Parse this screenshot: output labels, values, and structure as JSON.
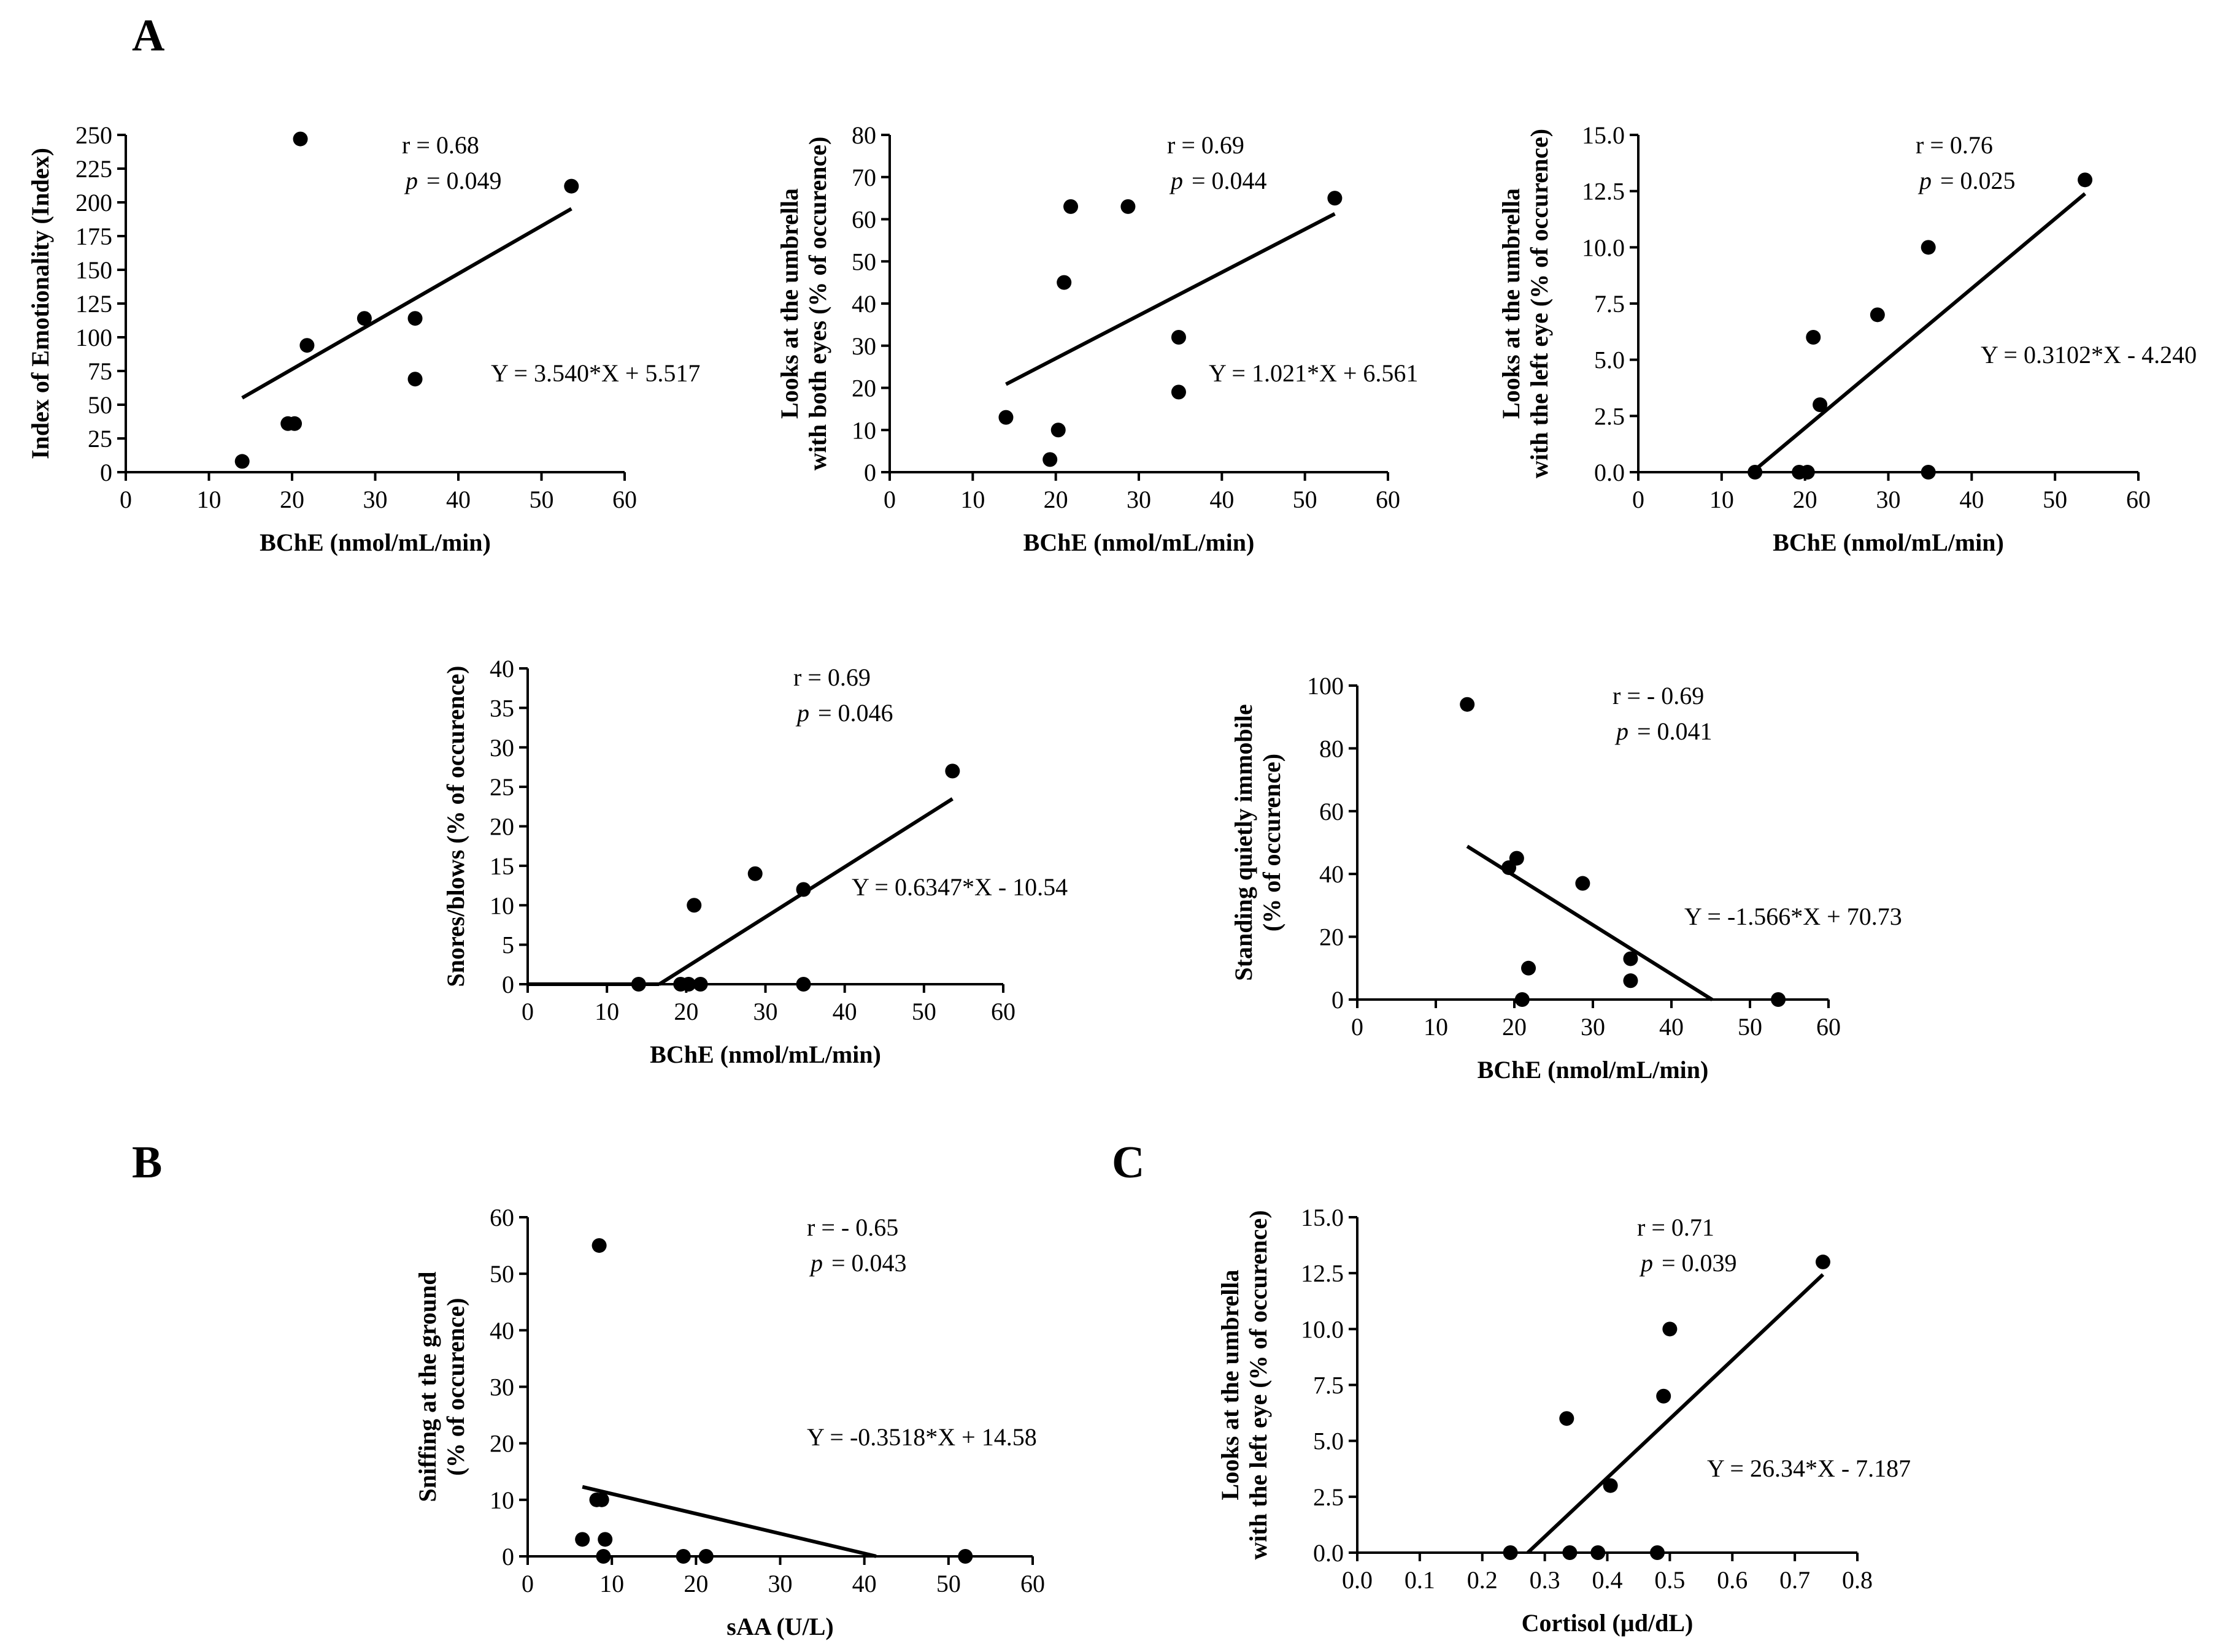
{
  "panel_letters": [
    "A",
    "B",
    "C"
  ],
  "chart_data": [
    {
      "type": "scatter",
      "panel": "A",
      "xlabel": "BChE (nmol/mL/min)",
      "ylabel": [
        "Index of Emotionality (Index)"
      ],
      "xlim": [
        0,
        60
      ],
      "ylim": [
        0,
        250
      ],
      "xticks": [
        "0",
        "10",
        "20",
        "30",
        "40",
        "50",
        "60"
      ],
      "yticks": [
        "0",
        "25",
        "50",
        "75",
        "100",
        "125",
        "150",
        "175",
        "200",
        "225",
        "250"
      ],
      "points": [
        [
          14,
          8
        ],
        [
          19.5,
          36
        ],
        [
          20.3,
          36
        ],
        [
          21,
          247
        ],
        [
          21.8,
          94
        ],
        [
          28.7,
          114
        ],
        [
          34.8,
          114
        ],
        [
          34.8,
          69
        ],
        [
          53.6,
          212
        ]
      ],
      "fit": {
        "slope": 3.54,
        "intercept": 5.517,
        "x_range": [
          14,
          53.6
        ]
      },
      "r_text": "r = 0.68",
      "p_label": "p",
      "p_text": "= 0.049",
      "equation": "Y = 3.540*X + 5.517"
    },
    {
      "type": "scatter",
      "panel": "A",
      "xlabel": "BChE (nmol/mL/min)",
      "ylabel": [
        "Looks at the umbrella",
        "with both eyes (% of occurence)"
      ],
      "xlim": [
        0,
        60
      ],
      "ylim": [
        0,
        80
      ],
      "xticks": [
        "0",
        "10",
        "20",
        "30",
        "40",
        "50",
        "60"
      ],
      "yticks": [
        "0",
        "10",
        "20",
        "30",
        "40",
        "50",
        "60",
        "70",
        "80"
      ],
      "points": [
        [
          14,
          13
        ],
        [
          19.3,
          3
        ],
        [
          20.3,
          10
        ],
        [
          21,
          45
        ],
        [
          21.8,
          63
        ],
        [
          28.7,
          63
        ],
        [
          34.8,
          32
        ],
        [
          34.8,
          19
        ],
        [
          53.6,
          65
        ]
      ],
      "fit": {
        "slope": 1.021,
        "intercept": 6.561,
        "x_range": [
          14,
          53.6
        ]
      },
      "r_text": "r = 0.69",
      "p_label": "p",
      "p_text": "= 0.044",
      "equation": "Y = 1.021*X + 6.561"
    },
    {
      "type": "scatter",
      "panel": "A",
      "xlabel": "BChE (nmol/mL/min)",
      "ylabel": [
        "Looks at the umbrella",
        "with the left eye (% of occurence)"
      ],
      "xlim": [
        0,
        60
      ],
      "ylim": [
        0,
        15
      ],
      "xticks": [
        "0",
        "10",
        "20",
        "30",
        "40",
        "50",
        "60"
      ],
      "yticks": [
        "0.0",
        "2.5",
        "5.0",
        "7.5",
        "10.0",
        "12.5",
        "15.0"
      ],
      "points": [
        [
          14,
          0
        ],
        [
          19.3,
          0
        ],
        [
          20.3,
          0
        ],
        [
          21,
          6
        ],
        [
          21.8,
          3
        ],
        [
          28.7,
          7
        ],
        [
          34.8,
          10
        ],
        [
          34.8,
          0
        ],
        [
          53.6,
          13
        ]
      ],
      "fit": {
        "slope": 0.3102,
        "intercept": -4.24,
        "x_range": [
          13.67,
          53.6
        ]
      },
      "r_text": "r = 0.76",
      "p_label": "p",
      "p_text": "= 0.025",
      "equation": "Y = 0.3102*X - 4.240"
    },
    {
      "type": "scatter",
      "panel": "A",
      "xlabel": "BChE (nmol/mL/min)",
      "ylabel": [
        "Snores/blows (% of occurence)"
      ],
      "xlim": [
        0,
        60
      ],
      "ylim": [
        0,
        40
      ],
      "xticks": [
        "0",
        "10",
        "20",
        "30",
        "40",
        "50",
        "60"
      ],
      "yticks": [
        "0",
        "5",
        "10",
        "15",
        "20",
        "25",
        "30",
        "35",
        "40"
      ],
      "points": [
        [
          14,
          0
        ],
        [
          19.3,
          0
        ],
        [
          20.3,
          0
        ],
        [
          21,
          10
        ],
        [
          21.8,
          0
        ],
        [
          28.7,
          14
        ],
        [
          34.8,
          12
        ],
        [
          34.8,
          0
        ],
        [
          53.6,
          27
        ]
      ],
      "fit": {
        "slope": 0.6347,
        "intercept": -10.54,
        "x_range": [
          16.6,
          53.6
        ]
      },
      "baseline": [
        0,
        16.6
      ],
      "r_text": "r = 0.69",
      "p_label": "p",
      "p_text": "= 0.046",
      "equation": "Y = 0.6347*X - 10.54"
    },
    {
      "type": "scatter",
      "panel": "A",
      "xlabel": "BChE (nmol/mL/min)",
      "ylabel": [
        "Standing quietly immobile",
        "(% of occurence)"
      ],
      "xlim": [
        0,
        60
      ],
      "ylim": [
        0,
        100
      ],
      "xticks": [
        "0",
        "10",
        "20",
        "30",
        "40",
        "50",
        "60"
      ],
      "yticks": [
        "0",
        "20",
        "40",
        "60",
        "80",
        "100"
      ],
      "points": [
        [
          14,
          94
        ],
        [
          19.3,
          42
        ],
        [
          20.3,
          45
        ],
        [
          21,
          0
        ],
        [
          21.8,
          10
        ],
        [
          28.7,
          37
        ],
        [
          34.8,
          13
        ],
        [
          34.8,
          6
        ],
        [
          53.6,
          0
        ]
      ],
      "fit": {
        "slope": -1.566,
        "intercept": 70.73,
        "x_range": [
          14,
          45.2
        ]
      },
      "r_text": "r = - 0.69",
      "p_label": "p",
      "p_text": "= 0.041",
      "equation": "Y = -1.566*X + 70.73"
    },
    {
      "type": "scatter",
      "panel": "B",
      "xlabel": "sAA (U/L)",
      "ylabel": [
        "Sniffing at the ground",
        "(% of occurence)"
      ],
      "xlim": [
        0,
        60
      ],
      "ylim": [
        0,
        60
      ],
      "xticks": [
        "0",
        "10",
        "20",
        "30",
        "40",
        "50",
        "60"
      ],
      "yticks": [
        "0",
        "10",
        "20",
        "30",
        "40",
        "50",
        "60"
      ],
      "points": [
        [
          6.5,
          3
        ],
        [
          8.2,
          10
        ],
        [
          8.5,
          55
        ],
        [
          8.8,
          10
        ],
        [
          9,
          0
        ],
        [
          9.2,
          3
        ],
        [
          18.5,
          0
        ],
        [
          21.2,
          0
        ],
        [
          52,
          0
        ]
      ],
      "fit": {
        "slope": -0.3518,
        "intercept": 14.58,
        "x_range": [
          6.5,
          41.4
        ]
      },
      "r_text": "r = - 0.65",
      "p_label": "p",
      "p_text": "= 0.043",
      "equation": "Y = -0.3518*X + 14.58"
    },
    {
      "type": "scatter",
      "panel": "C",
      "xlabel": "Cortisol  (µd/dL)",
      "ylabel": [
        "Looks at the umbrella",
        "with the left eye (% of occurence)"
      ],
      "xlim": [
        0,
        0.8
      ],
      "ylim": [
        0,
        15
      ],
      "xticks": [
        "0.0",
        "0.1",
        "0.2",
        "0.3",
        "0.4",
        "0.5",
        "0.6",
        "0.7",
        "0.8"
      ],
      "yticks": [
        "0.0",
        "2.5",
        "5.0",
        "7.5",
        "10.0",
        "12.5",
        "15.0"
      ],
      "points": [
        [
          0.245,
          0
        ],
        [
          0.335,
          6
        ],
        [
          0.34,
          0
        ],
        [
          0.385,
          0
        ],
        [
          0.405,
          3
        ],
        [
          0.48,
          0
        ],
        [
          0.49,
          7
        ],
        [
          0.5,
          10
        ],
        [
          0.745,
          13
        ]
      ],
      "fit": {
        "slope": 26.34,
        "intercept": -7.187,
        "x_range": [
          0.273,
          0.745
        ]
      },
      "r_text": "r = 0.71",
      "p_label": "p",
      "p_text": "= 0.039",
      "equation": "Y = 26.34*X - 7.187"
    }
  ]
}
